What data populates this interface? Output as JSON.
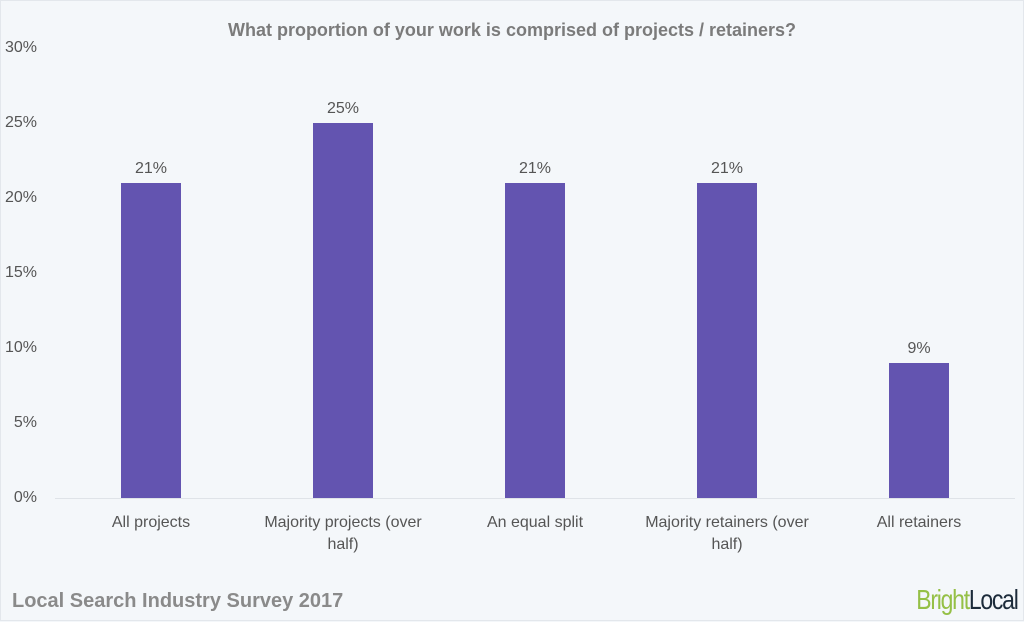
{
  "chart_data": {
    "type": "bar",
    "title": "What proportion of your work is comprised of projects / retainers?",
    "categories": [
      "All projects",
      "Majority projects (over half)",
      "An equal split",
      "Majority retainers (over half)",
      "All retainers"
    ],
    "values": [
      21,
      25,
      21,
      21,
      9
    ],
    "value_labels": [
      "21%",
      "25%",
      "21%",
      "21%",
      "9%"
    ],
    "xlabel": "",
    "ylabel": "",
    "ylim": [
      0,
      30
    ],
    "yticks": [
      "0%",
      "5%",
      "10%",
      "15%",
      "20%",
      "25%",
      "30%"
    ],
    "grid": false,
    "legend": null,
    "bar_color": "#6354b0"
  },
  "footer": {
    "source": "Local Search Industry Survey 2017",
    "brand_part1": "Bright",
    "brand_part2": "Local"
  }
}
